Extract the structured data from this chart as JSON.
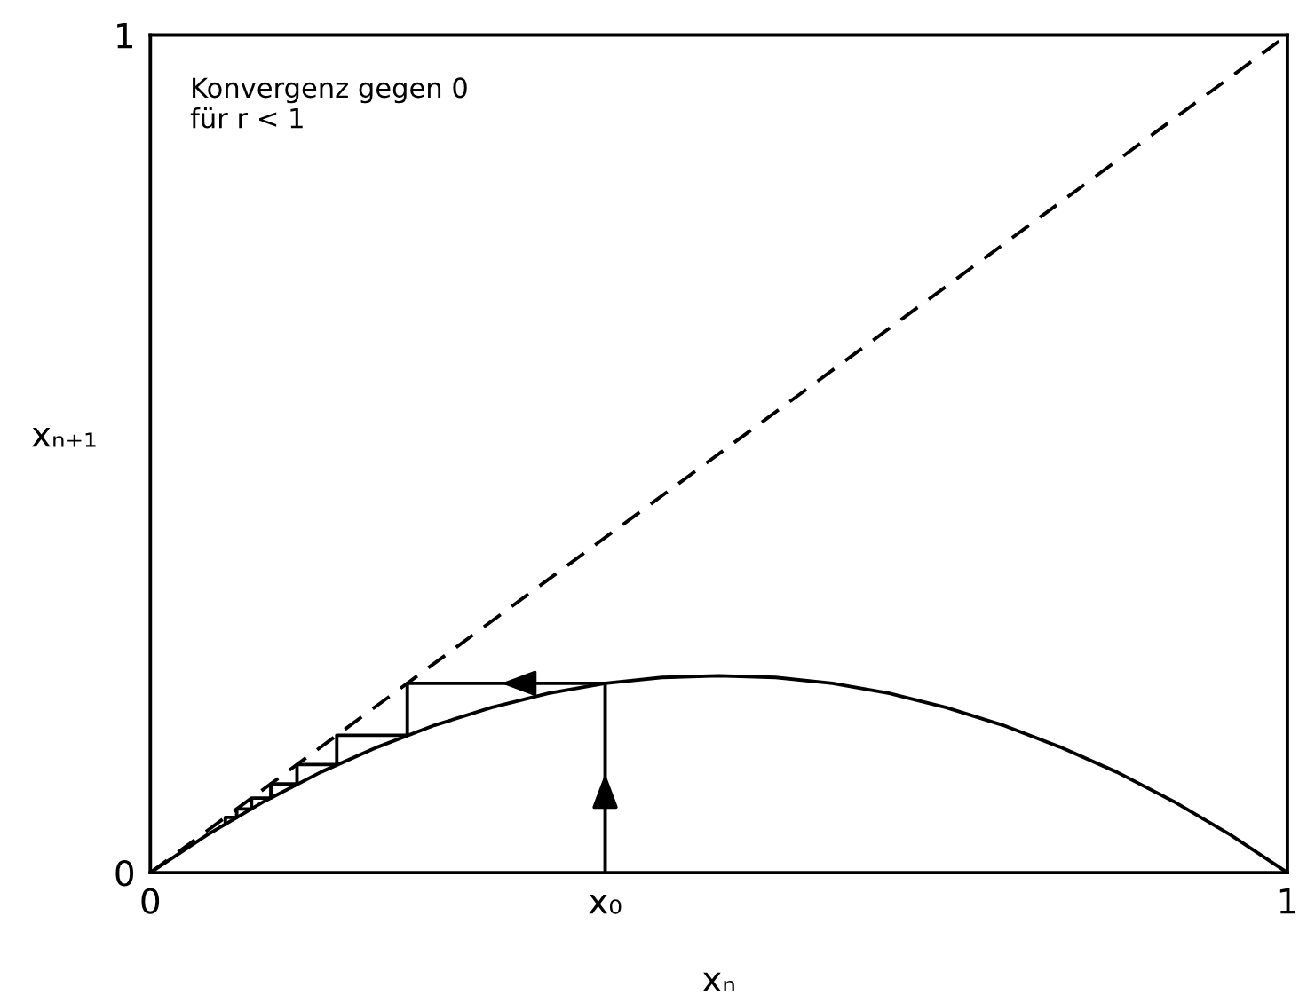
{
  "chart_data": {
    "type": "line",
    "xlabel": "xₙ",
    "ylabel": "xₙ₊₁",
    "xlim": [
      0,
      1
    ],
    "ylim": [
      0,
      1
    ],
    "xticks": [
      0,
      {
        "value": 0.4,
        "label": "x₀"
      },
      1
    ],
    "yticks": [
      0,
      1
    ],
    "grid": false,
    "legend": false,
    "marker": "none",
    "annotations": [
      "Konvergenz gegen 0\nfür r < 1"
    ],
    "series": [
      {
        "color": "#000000",
        "line_style": "solid",
        "x": [
          0,
          0.05,
          0.1,
          0.15,
          0.2,
          0.25,
          0.3,
          0.35,
          0.4,
          0.45,
          0.5,
          0.55,
          0.6,
          0.65,
          0.7,
          0.75,
          0.8,
          0.85,
          0.9,
          0.95,
          1
        ],
        "values": [
          0,
          0.045,
          0.085,
          0.12,
          0.15,
          0.176,
          0.197,
          0.214,
          0.226,
          0.233,
          0.235,
          0.233,
          0.226,
          0.214,
          0.197,
          0.176,
          0.15,
          0.12,
          0.085,
          0.045,
          0
        ]
      },
      {
        "color": "#000000",
        "line_style": "dashed",
        "x": [
          0,
          1
        ],
        "values": [
          0,
          1
        ]
      },
      {
        "color": "#000000",
        "line_style": "solid",
        "x": [
          0.4,
          0.4,
          0.226,
          0.226,
          0.164,
          0.164,
          0.129,
          0.129,
          0.106,
          0.106,
          0.089,
          0.089,
          0.076,
          0.076,
          0.066,
          0.066
        ],
        "values": [
          0,
          0.226,
          0.226,
          0.164,
          0.164,
          0.129,
          0.129,
          0.106,
          0.106,
          0.089,
          0.089,
          0.076,
          0.076,
          0.066,
          0.066,
          0.058
        ]
      }
    ]
  }
}
